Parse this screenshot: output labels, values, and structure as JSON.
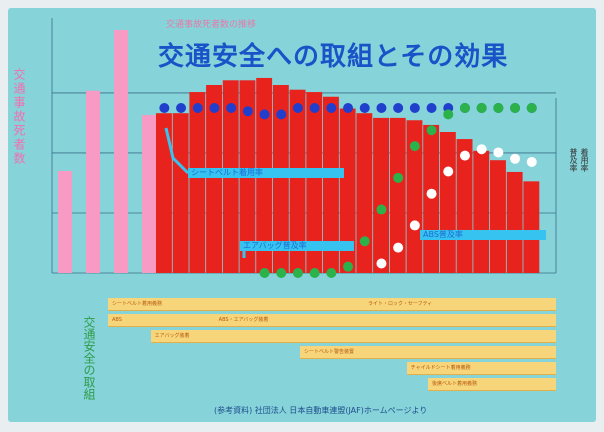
{
  "title": "交通安全への取組とその効果",
  "subtitle": "交通事故死者数の推移",
  "left_ylabel": "交通事故死者数",
  "right_ylabel_1": "普及率",
  "right_ylabel_2": "着用率",
  "timeline_label": "交通安全の取組",
  "source": "(参考資料) 社団法人 日本自動車連盟(JAF)ホームページより",
  "series_labels": {
    "seatbelt": "シートベルト着用率",
    "airbag": "エアバッグ普及率",
    "abs": "ABS普及率"
  },
  "colors": {
    "background": "#86d3d9",
    "early_bars": "#f79ac4",
    "main_bars": "#e8231e",
    "blue_dots": "#1f3fcc",
    "green_dots": "#2bb24a",
    "white_dots": "#ffffff",
    "title": "#1a52c8",
    "timeline": "#f7d57a"
  },
  "chart_data": [
    {
      "type": "bar",
      "series": [
        {
          "name": "",
          "values": [
            4200,
            7500,
            10000,
            6500
          ]
        }
      ],
      "x": [
        "",
        "",
        "",
        ""
      ],
      "ylim": [
        0,
        10000
      ]
    },
    {
      "type": "bar+line",
      "series": [
        {
          "name": "交通事故死者数",
          "type": "bar",
          "values": [
            6800,
            6800,
            7700,
            8000,
            8200,
            8200,
            8300,
            8000,
            7800,
            7700,
            7500,
            7000,
            6800,
            6600,
            6600,
            6500,
            6300,
            6000,
            5700,
            5200,
            4800,
            4300,
            3900
          ]
        },
        {
          "name": "",
          "type": "dots",
          "values": [
            70,
            69,
            69,
            60,
            55,
            51,
            50,
            50,
            53,
            55,
            58,
            60,
            62,
            62,
            62,
            61,
            62,
            63,
            65,
            67,
            69,
            71,
            73
          ]
        },
        {
          "name": "",
          "type": "dots",
          "values": [
            null,
            null,
            null,
            null,
            null,
            null,
            0,
            0,
            0,
            0,
            0,
            2,
            10,
            20,
            30,
            40,
            45,
            50,
            53,
            55,
            57,
            60,
            62
          ]
        },
        {
          "name": "",
          "type": "dots",
          "values": [
            null,
            null,
            null,
            null,
            null,
            null,
            null,
            null,
            null,
            null,
            null,
            null,
            null,
            3,
            8,
            15,
            25,
            32,
            37,
            39,
            38,
            36,
            35
          ]
        }
      ],
      "ylim_left": [
        0,
        10000
      ],
      "ylim_right": [
        0,
        100
      ]
    }
  ],
  "timeline": [
    {
      "label": "シートベルト着用義務",
      "start": 0,
      "end": 21,
      "row": 0
    },
    {
      "label": "ライト・ロック・セーフティ",
      "start": 12,
      "end": 21,
      "row": 0
    },
    {
      "label": "ABS",
      "start": 0,
      "end": 21,
      "row": 1
    },
    {
      "label": "ABS・エアバッグ装着",
      "start": 5,
      "end": 21,
      "row": 1
    },
    {
      "label": "エアバッグ装着",
      "start": 2,
      "end": 21,
      "row": 2
    },
    {
      "label": "シートベルト警告装置",
      "start": 9,
      "end": 21,
      "row": 3
    },
    {
      "label": "チャイルドシート着用義務",
      "start": 14,
      "end": 21,
      "row": 4
    },
    {
      "label": "後席ベルト着用義務",
      "start": 15,
      "end": 21,
      "row": 5
    }
  ]
}
